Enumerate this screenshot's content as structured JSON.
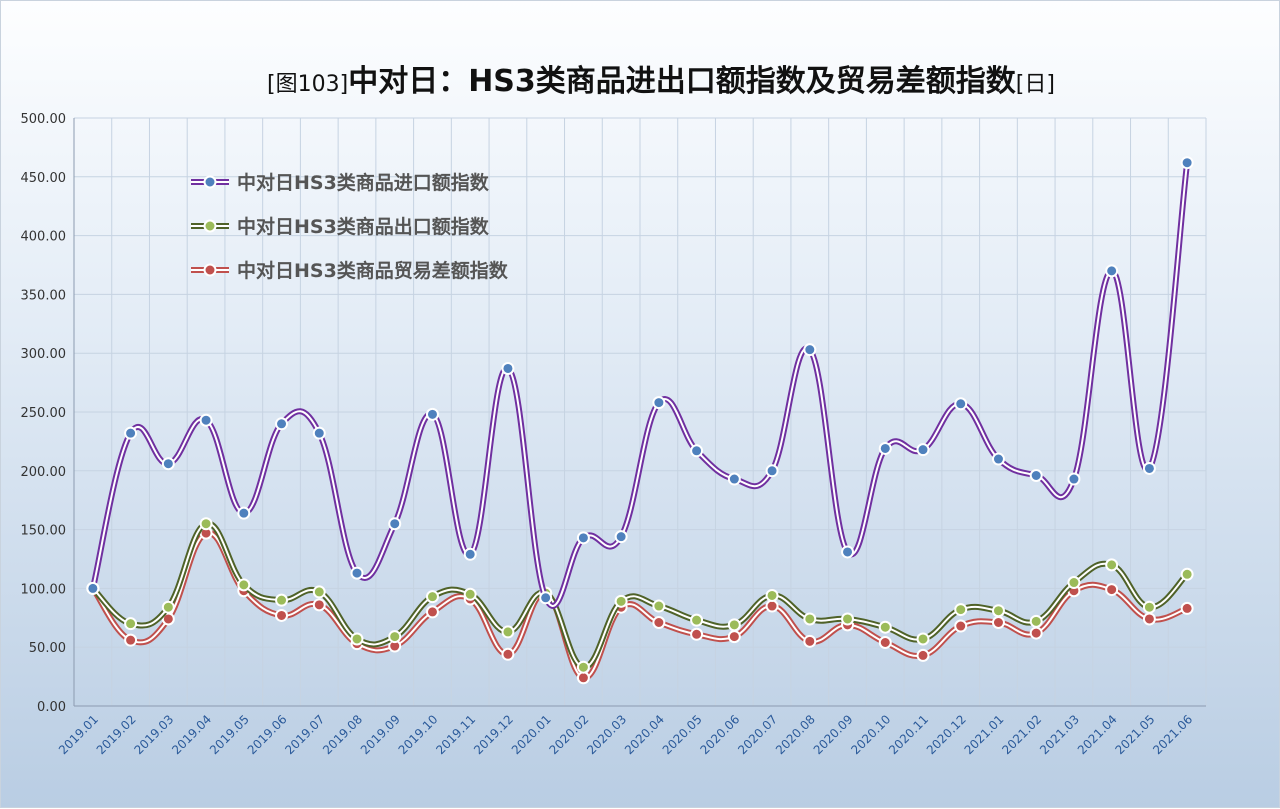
{
  "chart_data": {
    "type": "line",
    "title": "[图103]中对日：HS3类商品进出口额指数及贸易差额指数[日]",
    "title_prefix": "[图103]",
    "title_main": "中对日：HS3类商品进出口额指数及贸易差额指数",
    "title_suffix": "[日]",
    "xlabel": "",
    "ylabel": "",
    "ylim": [
      0,
      500
    ],
    "ytick_step": 50,
    "grid": true,
    "legend_position": "top-left",
    "categories": [
      "2019.01",
      "2019.02",
      "2019.03",
      "2019.04",
      "2019.05",
      "2019.06",
      "2019.07",
      "2019.08",
      "2019.09",
      "2019.10",
      "2019.11",
      "2019.12",
      "2020.01",
      "2020.02",
      "2020.03",
      "2020.04",
      "2020.05",
      "2020.06",
      "2020.07",
      "2020.08",
      "2020.09",
      "2020.10",
      "2020.11",
      "2020.12",
      "2021.01",
      "2021.02",
      "2021.03",
      "2021.04",
      "2021.05",
      "2021.06"
    ],
    "series": [
      {
        "name": "中对日HS3类商品进口额指数",
        "color": "#7030a0",
        "marker_color": "#4f81bd",
        "values": [
          100,
          232,
          206,
          243,
          164,
          240,
          232,
          113,
          155,
          248,
          129,
          287,
          92,
          143,
          144,
          258,
          217,
          193,
          200,
          303,
          131,
          219,
          218,
          257,
          210,
          196,
          193,
          370,
          202,
          462
        ]
      },
      {
        "name": "中对日HS3类商品出口额指数",
        "color": "#4f6228",
        "marker_color": "#9bbb59",
        "values": [
          100,
          70,
          84,
          155,
          103,
          90,
          97,
          57,
          59,
          93,
          95,
          63,
          96,
          33,
          89,
          85,
          73,
          69,
          94,
          74,
          74,
          67,
          57,
          82,
          81,
          72,
          105,
          120,
          84,
          112
        ]
      },
      {
        "name": "中对日HS3类商品贸易差额指数",
        "color": "#c0504d",
        "marker_color": "#c0504d",
        "values": [
          100,
          56,
          74,
          147,
          98,
          77,
          86,
          53,
          51,
          80,
          91,
          44,
          96,
          24,
          84,
          71,
          61,
          59,
          85,
          55,
          69,
          54,
          43,
          68,
          71,
          62,
          98,
          99,
          74,
          83
        ]
      }
    ]
  }
}
